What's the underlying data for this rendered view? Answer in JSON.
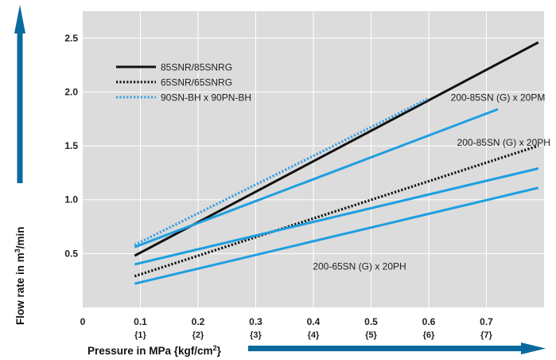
{
  "chart_data": {
    "type": "line",
    "xlabel": "Pressure in MPa {kgf/cm",
    "xlabel_sup": "2",
    "xlabel_end": "}",
    "ylabel": "Flow rate in m",
    "ylabel_sup": "3",
    "ylabel_end": "/min",
    "xlim": [
      0,
      0.8
    ],
    "ylim": [
      0,
      2.75
    ],
    "x_ticks": [
      {
        "value": 0,
        "label": "0",
        "sub": ""
      },
      {
        "value": 0.1,
        "label": "0.1",
        "sub": "{1}"
      },
      {
        "value": 0.2,
        "label": "0.2",
        "sub": "{2}"
      },
      {
        "value": 0.3,
        "label": "0.3",
        "sub": "{3}"
      },
      {
        "value": 0.4,
        "label": "0.4",
        "sub": "{4}"
      },
      {
        "value": 0.5,
        "label": "0.5",
        "sub": "{5}"
      },
      {
        "value": 0.6,
        "label": "0.6",
        "sub": "{6}"
      },
      {
        "value": 0.7,
        "label": "0.7",
        "sub": "{7}"
      }
    ],
    "y_ticks": [
      {
        "value": 0.5,
        "label": "0.5"
      },
      {
        "value": 1.0,
        "label": "1.0"
      },
      {
        "value": 1.5,
        "label": "1.5"
      },
      {
        "value": 2.0,
        "label": "2.0"
      },
      {
        "value": 2.5,
        "label": "2.5"
      }
    ],
    "grid": true,
    "legend_position": "top-left",
    "series": [
      {
        "name": "85SNR/85SNRG",
        "color": "#111111",
        "style": "solid",
        "legend": true,
        "x": [
          0.09,
          0.79
        ],
        "y": [
          0.48,
          2.46
        ]
      },
      {
        "name": "65SNR/65SNRG",
        "color": "#111111",
        "style": "dotted",
        "legend": true,
        "x": [
          0.09,
          0.79
        ],
        "y": [
          0.29,
          1.5
        ]
      },
      {
        "name": "90SN-BH x 90PN-BH",
        "color": "#3a9ee0",
        "style": "dotted",
        "legend": true,
        "x": [
          0.09,
          0.6
        ],
        "y": [
          0.58,
          1.94
        ]
      },
      {
        "name": "200-85SN (G) x 20PM",
        "color": "#1e9ee0",
        "style": "solid",
        "legend": false,
        "x": [
          0.09,
          0.72
        ],
        "y": [
          0.56,
          1.84
        ]
      },
      {
        "name": "200-85SN (G) x 20PH",
        "color": "#1e9ee0",
        "style": "solid",
        "legend": false,
        "x": [
          0.09,
          0.79
        ],
        "y": [
          0.4,
          1.29
        ]
      },
      {
        "name": "200-65SN (G) x 20PH",
        "color": "#1e9ee0",
        "style": "solid",
        "legend": false,
        "x": [
          0.09,
          0.79
        ],
        "y": [
          0.22,
          1.11
        ]
      }
    ],
    "annotations": [
      {
        "text": "200-85SN (G) x 20PM",
        "x": 0.72,
        "y": 1.92
      },
      {
        "text": "200-85SN (G) x 20PH",
        "x": 0.73,
        "y": 1.5
      },
      {
        "text": "200-65SN (G) x 20PH",
        "x": 0.48,
        "y": 0.35
      }
    ],
    "colors": {
      "plot_bg": "#dcdcdc",
      "grid": "#ffffff",
      "arrow": "#0a6a9e",
      "blue": "#1e9ee0"
    }
  }
}
